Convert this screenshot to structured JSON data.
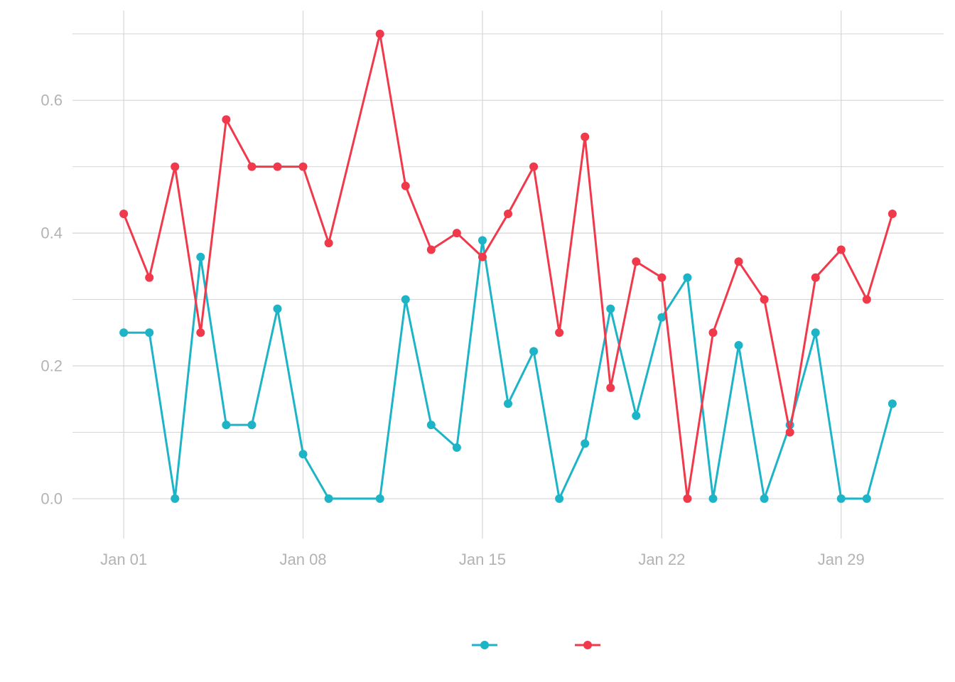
{
  "chart_data": {
    "type": "line",
    "title": "",
    "xlabel": "",
    "ylabel": "",
    "x_type": "date",
    "x": [
      "2024-01-01",
      "2024-01-02",
      "2024-01-03",
      "2024-01-04",
      "2024-01-05",
      "2024-01-06",
      "2024-01-07",
      "2024-01-08",
      "2024-01-09",
      "2024-01-11",
      "2024-01-12",
      "2024-01-13",
      "2024-01-14",
      "2024-01-15",
      "2024-01-16",
      "2024-01-17",
      "2024-01-18",
      "2024-01-19",
      "2024-01-20",
      "2024-01-21",
      "2024-01-22",
      "2024-01-23",
      "2024-01-24",
      "2024-01-25",
      "2024-01-26",
      "2024-01-27",
      "2024-01-28",
      "2024-01-29",
      "2024-01-30",
      "2024-01-31"
    ],
    "xlim": [
      "2023-12-30",
      "2024-02-02"
    ],
    "x_ticks": [
      "2024-01-01",
      "2024-01-08",
      "2024-01-15",
      "2024-01-22",
      "2024-01-29"
    ],
    "x_tick_labels": [
      "Jan 01",
      "Jan 08",
      "Jan 15",
      "Jan 22",
      "Jan 29"
    ],
    "ylim": [
      -0.06,
      0.735
    ],
    "y_ticks": [
      0.0,
      0.2,
      0.4,
      0.6
    ],
    "y_tick_labels": [
      "0.0",
      "0.2",
      "0.4",
      "0.6"
    ],
    "y_minor_ticks": [
      0.1,
      0.3,
      0.5,
      0.7
    ],
    "grid": true,
    "legend_position": "bottom",
    "series": [
      {
        "color": "#1cb4c6",
        "values": [
          0.25,
          0.25,
          0.0,
          0.364,
          0.111,
          0.111,
          0.286,
          0.067,
          0.0,
          0.0,
          0.3,
          0.111,
          0.077,
          0.389,
          0.143,
          0.222,
          0.0,
          0.083,
          0.286,
          0.125,
          0.273,
          0.333,
          0.0,
          0.231,
          0.0,
          0.111,
          0.25,
          0.0,
          0.0,
          0.143
        ]
      },
      {
        "color": "#f0394b",
        "values": [
          0.429,
          0.333,
          0.5,
          0.25,
          0.571,
          0.5,
          0.5,
          0.5,
          0.385,
          0.7,
          0.471,
          0.375,
          0.4,
          0.364,
          0.429,
          0.5,
          0.25,
          0.545,
          0.167,
          0.357,
          0.333,
          0.0,
          0.25,
          0.357,
          0.3,
          0.1,
          0.333,
          0.375,
          0.3,
          0.429
        ]
      }
    ]
  }
}
